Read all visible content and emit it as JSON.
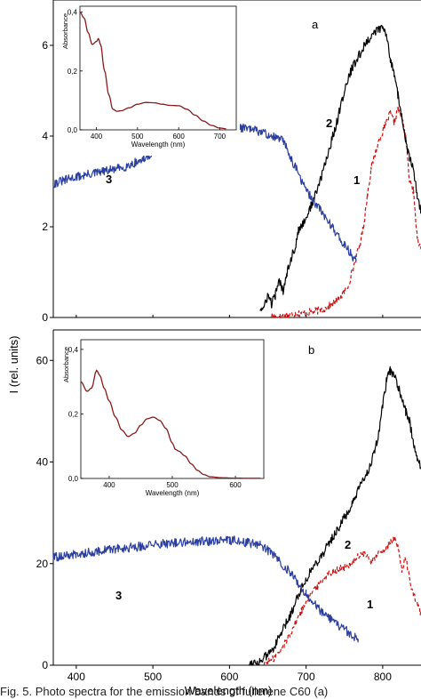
{
  "figure": {
    "shared_ylabel": "I (rel. units)",
    "caption": "Fig. 5. Photo spectra for the emission bands of fullerene C60 (a)"
  },
  "chart_data": [
    {
      "type": "line",
      "panel_label": "a",
      "xlabel": "",
      "xlim": [
        370,
        850
      ],
      "ylim": [
        0,
        7
      ],
      "yticks": [
        0,
        2,
        4,
        6
      ],
      "yticklabels": [
        "0",
        "2",
        "4",
        "6"
      ],
      "series": [
        {
          "label": "1",
          "color": "#cc1111",
          "dashed": true,
          "x": [
            655,
            665,
            675,
            685,
            695,
            705,
            715,
            725,
            735,
            745,
            755,
            765,
            770,
            775,
            780,
            785,
            790,
            795,
            800,
            805,
            810,
            815,
            820,
            825,
            830,
            835,
            840,
            845,
            850
          ],
          "y": [
            0.05,
            0.02,
            0.05,
            0.08,
            0.1,
            0.12,
            0.15,
            0.2,
            0.3,
            0.45,
            0.7,
            1.3,
            1.6,
            2.0,
            2.7,
            3.3,
            3.6,
            3.9,
            4.1,
            4.3,
            4.5,
            4.3,
            4.6,
            4.4,
            4.0,
            3.0,
            2.8,
            1.8,
            1.5
          ]
        },
        {
          "label": "2",
          "color": "#000000",
          "dashed": false,
          "x": [
            640,
            645,
            650,
            655,
            660,
            665,
            670,
            675,
            680,
            685,
            690,
            700,
            710,
            720,
            730,
            740,
            750,
            760,
            770,
            780,
            790,
            800,
            805,
            810,
            815,
            820,
            825,
            830,
            835,
            840,
            845,
            850
          ],
          "y": [
            0.2,
            0.2,
            0.5,
            0.3,
            0.5,
            0.8,
            0.6,
            1.0,
            1.3,
            1.5,
            1.9,
            2.2,
            2.6,
            3.1,
            3.7,
            4.3,
            5.0,
            5.5,
            5.8,
            6.1,
            6.3,
            6.4,
            6.2,
            5.7,
            5.4,
            4.9,
            4.4,
            3.9,
            3.5,
            3.3,
            2.7,
            2.3
          ]
        },
        {
          "label": "3",
          "color": "#2b3fa0",
          "dashed": false,
          "x": [
            370,
            400,
            430,
            460,
            490,
            520,
            550,
            580,
            610,
            640,
            670,
            700,
            730,
            750,
            765
          ],
          "y": [
            2.95,
            3.1,
            3.2,
            3.3,
            3.5,
            4.0,
            4.15,
            4.2,
            4.2,
            4.1,
            3.9,
            2.8,
            2.1,
            1.6,
            1.25
          ]
        }
      ],
      "inset": {
        "xlabel": "Wavelength (nm)",
        "ylabel": "Absorbance",
        "xlim": [
          360,
          740
        ],
        "ylim": [
          0,
          0.42
        ],
        "xticks": [
          400,
          500,
          600,
          700
        ],
        "yticks": [
          0,
          0.2,
          0.4
        ],
        "yticklabels": [
          "0,0",
          "0,2",
          "0,4"
        ],
        "color": "#8b1a1a",
        "x": [
          360,
          370,
          380,
          390,
          400,
          405,
          410,
          420,
          430,
          440,
          450,
          460,
          480,
          500,
          520,
          540,
          560,
          580,
          600,
          620,
          640,
          660,
          680,
          700,
          715
        ],
        "y": [
          0.4,
          0.38,
          0.33,
          0.29,
          0.3,
          0.31,
          0.29,
          0.2,
          0.12,
          0.07,
          0.063,
          0.065,
          0.075,
          0.087,
          0.093,
          0.092,
          0.087,
          0.083,
          0.082,
          0.07,
          0.05,
          0.03,
          0.015,
          0.006,
          0.004
        ]
      }
    },
    {
      "type": "line",
      "panel_label": "b",
      "xlabel": "Wavelength (nm)",
      "xlim": [
        370,
        850
      ],
      "ylim": [
        0,
        66
      ],
      "xticks": [
        400,
        500,
        600,
        700,
        800
      ],
      "yticks": [
        0,
        20,
        40,
        60
      ],
      "series": [
        {
          "label": "1",
          "color": "#cc1111",
          "dashed": true,
          "x": [
            645,
            655,
            665,
            675,
            685,
            695,
            705,
            715,
            725,
            735,
            745,
            755,
            765,
            775,
            785,
            795,
            805,
            815,
            820,
            825,
            830,
            835,
            840,
            845,
            850
          ],
          "y": [
            0.3,
            1.0,
            2.5,
            5.0,
            8.0,
            11.0,
            14.0,
            15.5,
            17.5,
            18.5,
            19.0,
            19.5,
            21.0,
            22.0,
            20.5,
            22.0,
            23.0,
            25.0,
            23.0,
            19.0,
            21.0,
            17.0,
            14.0,
            12.0,
            10.0
          ]
        },
        {
          "label": "2",
          "color": "#000000",
          "dashed": false,
          "x": [
            625,
            640,
            650,
            660,
            670,
            680,
            690,
            700,
            710,
            720,
            730,
            740,
            750,
            760,
            770,
            780,
            790,
            795,
            800,
            805,
            810,
            815,
            820,
            825,
            830,
            835,
            840,
            845,
            850
          ],
          "y": [
            0.3,
            0.8,
            2.0,
            4.0,
            7.0,
            10.0,
            14.0,
            17.0,
            19.5,
            21.5,
            24.0,
            26.5,
            29.0,
            31.5,
            35.0,
            38.0,
            42.0,
            46.0,
            51.0,
            56.0,
            58.0,
            57.0,
            55.0,
            52.0,
            50.0,
            48.0,
            44.0,
            41.0,
            39.0
          ]
        },
        {
          "label": "3",
          "color": "#2b3fa0",
          "dashed": false,
          "x": [
            370,
            400,
            430,
            460,
            490,
            520,
            550,
            580,
            600,
            620,
            640,
            660,
            680,
            700,
            720,
            740,
            755,
            768
          ],
          "y": [
            21.2,
            21.8,
            22.5,
            23.0,
            23.5,
            24.0,
            24.3,
            24.5,
            24.7,
            24.2,
            23.8,
            21.5,
            18.0,
            14.0,
            10.5,
            8.0,
            6.5,
            5.2
          ]
        }
      ],
      "inset": {
        "xlabel": "Wavelength (nm)",
        "ylabel": "Absorbance",
        "xlim": [
          355,
          645
        ],
        "ylim": [
          0,
          0.43
        ],
        "xticks": [
          400,
          500,
          600
        ],
        "yticks": [
          0,
          0.2,
          0.4
        ],
        "yticklabels": [
          "0,0",
          "0,2",
          "0,4"
        ],
        "color": "#8b1a1a",
        "x": [
          355,
          365,
          372,
          380,
          385,
          392,
          400,
          410,
          420,
          430,
          440,
          450,
          460,
          470,
          480,
          490,
          500,
          505,
          510,
          520,
          530,
          540,
          550,
          560,
          580,
          600,
          620,
          640
        ],
        "y": [
          0.3,
          0.27,
          0.28,
          0.335,
          0.32,
          0.28,
          0.24,
          0.19,
          0.15,
          0.13,
          0.14,
          0.165,
          0.185,
          0.19,
          0.18,
          0.155,
          0.11,
          0.09,
          0.085,
          0.07,
          0.045,
          0.025,
          0.012,
          0.005,
          0.002,
          0.001,
          0.0005,
          0.0005
        ]
      }
    }
  ]
}
